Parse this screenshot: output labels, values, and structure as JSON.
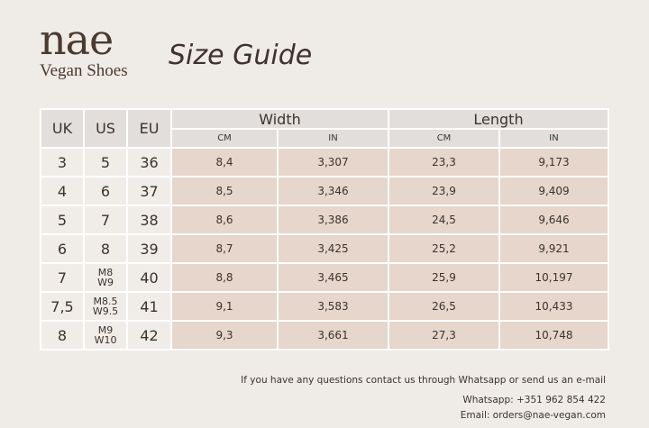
{
  "brand": {
    "name": "nae",
    "tagline": "Vegan Shoes"
  },
  "title": "Size Guide",
  "table": {
    "headers": {
      "uk": "UK",
      "us": "US",
      "eu": "EU",
      "width": "Width",
      "length": "Length",
      "cm": "CM",
      "in": "IN"
    },
    "rows": [
      {
        "uk": "3",
        "us": [
          "5"
        ],
        "eu": "36",
        "width_cm": "8,4",
        "width_in": "3,307",
        "length_cm": "23,3",
        "length_in": "9,173"
      },
      {
        "uk": "4",
        "us": [
          "6"
        ],
        "eu": "37",
        "width_cm": "8,5",
        "width_in": "3,346",
        "length_cm": "23,9",
        "length_in": "9,409"
      },
      {
        "uk": "5",
        "us": [
          "7"
        ],
        "eu": "38",
        "width_cm": "8,6",
        "width_in": "3,386",
        "length_cm": "24,5",
        "length_in": "9,646"
      },
      {
        "uk": "6",
        "us": [
          "8"
        ],
        "eu": "39",
        "width_cm": "8,7",
        "width_in": "3,425",
        "length_cm": "25,2",
        "length_in": "9,921"
      },
      {
        "uk": "7",
        "us": [
          "M8",
          "W9"
        ],
        "eu": "40",
        "width_cm": "8,8",
        "width_in": "3,465",
        "length_cm": "25,9",
        "length_in": "10,197"
      },
      {
        "uk": "7,5",
        "us": [
          "M8.5",
          "W9.5"
        ],
        "eu": "41",
        "width_cm": "9,1",
        "width_in": "3,583",
        "length_cm": "26,5",
        "length_in": "10,433"
      },
      {
        "uk": "8",
        "us": [
          "M9",
          "W10"
        ],
        "eu": "42",
        "width_cm": "9,3",
        "width_in": "3,661",
        "length_cm": "27,3",
        "length_in": "10,748"
      }
    ]
  },
  "footer": {
    "note": "If you have any questions contact us through Whatsapp or send us an e-mail",
    "whatsapp": "Whatsapp: +351 962 854 422",
    "email": "Email: orders@nae-vegan.com"
  },
  "colors": {
    "background": "#efebe6",
    "header": "#e2dedb",
    "data_cell": "#e6d6cb",
    "size_cell": "#f0ece8"
  }
}
